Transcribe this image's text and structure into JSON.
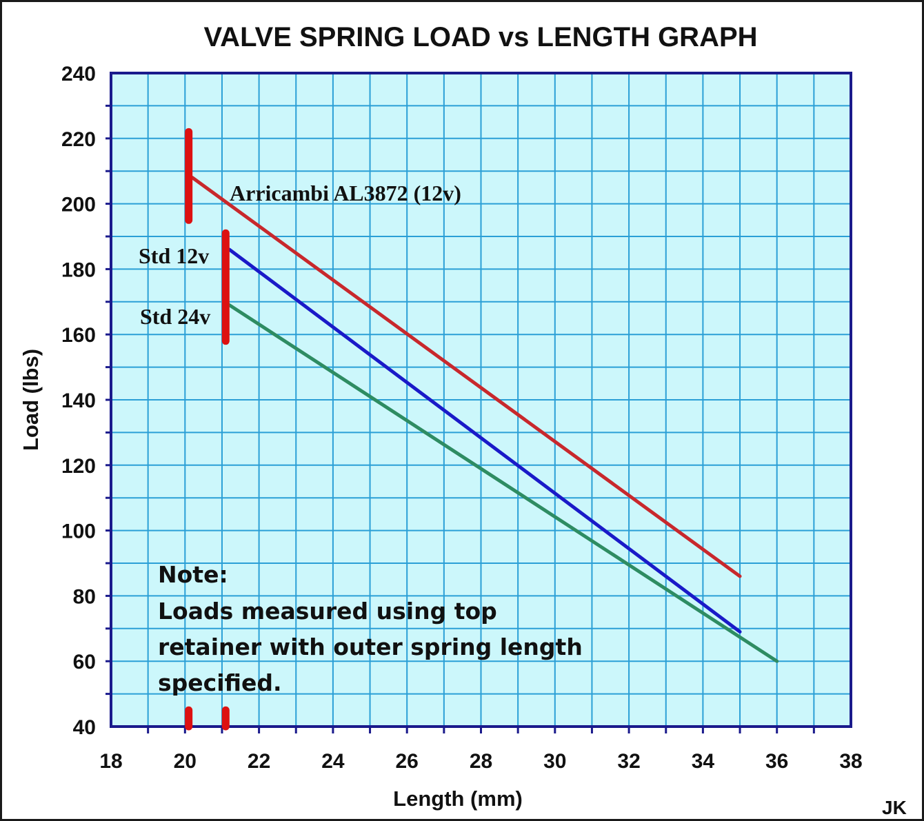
{
  "chart_data": {
    "type": "line",
    "title": "VALVE SPRING LOAD vs LENGTH GRAPH",
    "xlabel": "Length (mm)",
    "ylabel": "Load (lbs)",
    "xlim": [
      18,
      38
    ],
    "ylim": [
      40,
      240
    ],
    "x_ticks": [
      "18",
      "20",
      "22",
      "24",
      "26",
      "28",
      "30",
      "32",
      "34",
      "36",
      "38"
    ],
    "y_ticks": [
      "240",
      "220",
      "200",
      "180",
      "160",
      "140",
      "120",
      "100",
      "80",
      "60",
      "40"
    ],
    "grid": true,
    "plot_background": "#ccf7fb",
    "grid_color": "#2a9fd6",
    "axis_color": "#1a1a8c",
    "series": [
      {
        "name": "Arricambi AL3872 (12v)",
        "color": "#c8282c",
        "x": [
          20.2,
          35
        ],
        "y": [
          208,
          86
        ]
      },
      {
        "name": "Std 12v",
        "color": "#1a1ac8",
        "x": [
          21.2,
          35
        ],
        "y": [
          186,
          69
        ]
      },
      {
        "name": "Std 24v",
        "color": "#2e8c62",
        "x": [
          21.2,
          36
        ],
        "y": [
          169,
          60
        ]
      }
    ],
    "markers": [
      {
        "color": "#dd1111",
        "x": 20.1,
        "y_from": 195,
        "y_to": 222
      },
      {
        "color": "#dd1111",
        "x": 21.1,
        "y_from": 158,
        "y_to": 191
      },
      {
        "color": "#dd1111",
        "x": 20.1,
        "y_from": 40,
        "y_to": 45
      },
      {
        "color": "#dd1111",
        "x": 21.1,
        "y_from": 40,
        "y_to": 45
      }
    ],
    "note": {
      "heading": "Note:",
      "lines": [
        "Loads measured using top",
        "retainer with outer spring length",
        "specified."
      ]
    },
    "signature": "JK"
  }
}
